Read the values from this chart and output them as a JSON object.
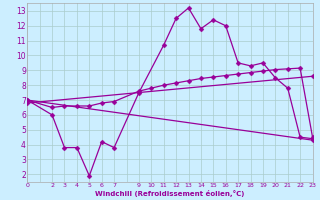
{
  "xlabel": "Windchill (Refroidissement éolien,°C)",
  "background_color": "#cceeff",
  "grid_color": "#aacccc",
  "line_color": "#990099",
  "xlim": [
    0,
    23
  ],
  "ylim": [
    1.5,
    13.5
  ],
  "xtick_positions": [
    0,
    1,
    2,
    3,
    4,
    5,
    6,
    7,
    8,
    9,
    10,
    11,
    12,
    13,
    14,
    15,
    16,
    17,
    18,
    19,
    20,
    21,
    22,
    23
  ],
  "xtick_labels": [
    "0",
    "",
    "2",
    "3",
    "4",
    "5",
    "6",
    "7",
    "",
    "9",
    "10",
    "11",
    "12",
    "13",
    "14",
    "15",
    "16",
    "17",
    "18",
    "19",
    "20",
    "21",
    "22",
    "23"
  ],
  "ytick_positions": [
    2,
    3,
    4,
    5,
    6,
    7,
    8,
    9,
    10,
    11,
    12,
    13
  ],
  "ytick_labels": [
    "2",
    "3",
    "4",
    "5",
    "6",
    "7",
    "8",
    "9",
    "10",
    "11",
    "12",
    "13"
  ],
  "series1_x": [
    0,
    2,
    3,
    4,
    5,
    6,
    7,
    9,
    11,
    12,
    13,
    14,
    15,
    16,
    17,
    18,
    19,
    20,
    21,
    22,
    23
  ],
  "series1_y": [
    7.0,
    6.0,
    3.8,
    3.8,
    1.9,
    4.2,
    3.8,
    7.5,
    10.7,
    12.5,
    13.2,
    11.8,
    12.4,
    12.0,
    9.5,
    9.3,
    9.5,
    8.5,
    7.8,
    4.5,
    4.4
  ],
  "series2_x": [
    0,
    2,
    3,
    4,
    5,
    6,
    7,
    9,
    10,
    11,
    12,
    13,
    14,
    15,
    16,
    17,
    18,
    19,
    20,
    21,
    22,
    23
  ],
  "series2_y": [
    7.0,
    6.5,
    6.6,
    6.6,
    6.6,
    6.8,
    6.9,
    7.6,
    7.8,
    8.0,
    8.15,
    8.3,
    8.45,
    8.55,
    8.65,
    8.75,
    8.85,
    8.95,
    9.05,
    9.1,
    9.15,
    4.5
  ],
  "series3_x": [
    0,
    23
  ],
  "series3_y": [
    6.8,
    8.6
  ],
  "series4_x": [
    0,
    23
  ],
  "series4_y": [
    7.0,
    4.3
  ],
  "markersize": 2.5,
  "linewidth": 0.9
}
